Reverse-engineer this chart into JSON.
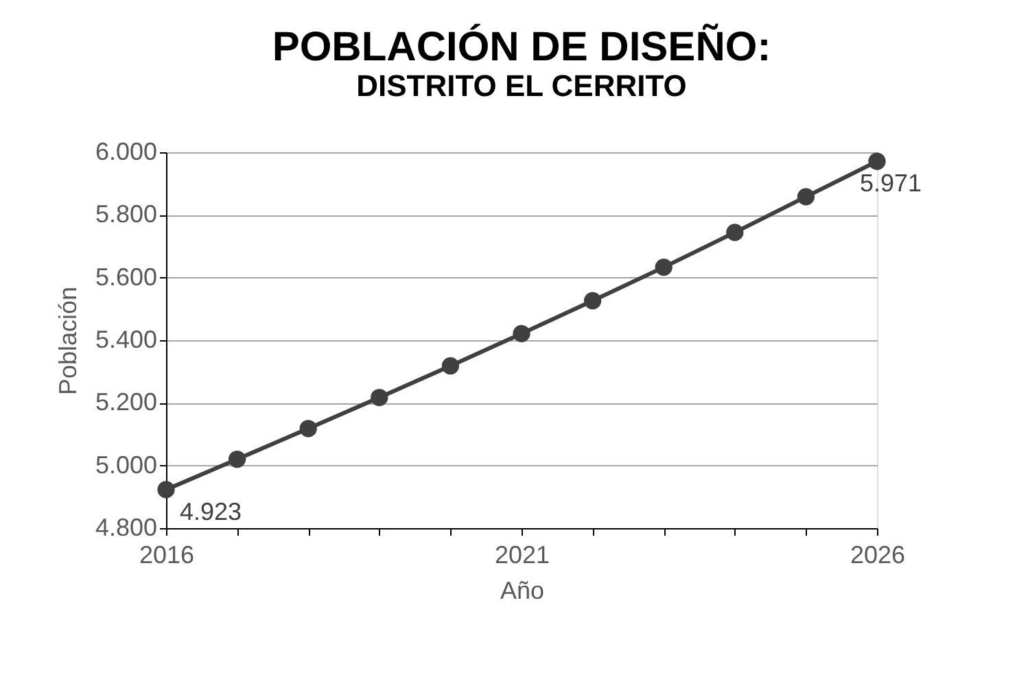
{
  "chart_data": {
    "type": "line",
    "title": "POBLACIÓN DE DISEÑO:",
    "subtitle": "DISTRITO EL CERRITO",
    "xlabel": "Año",
    "ylabel": "Población",
    "x": [
      2016,
      2017,
      2018,
      2019,
      2020,
      2021,
      2022,
      2023,
      2024,
      2025,
      2026
    ],
    "series": [
      {
        "color": "#404040",
        "values": [
          4923,
          5020,
          5118,
          5217,
          5318,
          5421,
          5526,
          5633,
          5744,
          5858,
          5971
        ],
        "value_labels": [
          "4.923",
          null,
          null,
          null,
          null,
          null,
          null,
          null,
          null,
          null,
          "5.971"
        ]
      }
    ],
    "xlim": [
      2016,
      2026
    ],
    "xticks": [
      2016,
      {
        "value": 2017,
        "label": null
      },
      {
        "value": 2018,
        "label": null
      },
      {
        "value": 2019,
        "label": null
      },
      {
        "value": 2020,
        "label": null
      },
      2021,
      {
        "value": 2022,
        "label": null
      },
      {
        "value": 2023,
        "label": null
      },
      {
        "value": 2024,
        "label": null
      },
      {
        "value": 2025,
        "label": null
      },
      2026
    ],
    "ylim": [
      4800,
      6000
    ],
    "yticks": [
      {
        "value": 4800,
        "label": "4.800"
      },
      {
        "value": 5000,
        "label": "5.000"
      },
      {
        "value": 5200,
        "label": "5.200"
      },
      {
        "value": 5400,
        "label": "5.400"
      },
      {
        "value": 5600,
        "label": "5.600"
      },
      {
        "value": 5800,
        "label": "5.800"
      },
      {
        "value": 6000,
        "label": "6.000"
      }
    ],
    "grid": "y",
    "marker": "circle",
    "line_style": "solid"
  }
}
